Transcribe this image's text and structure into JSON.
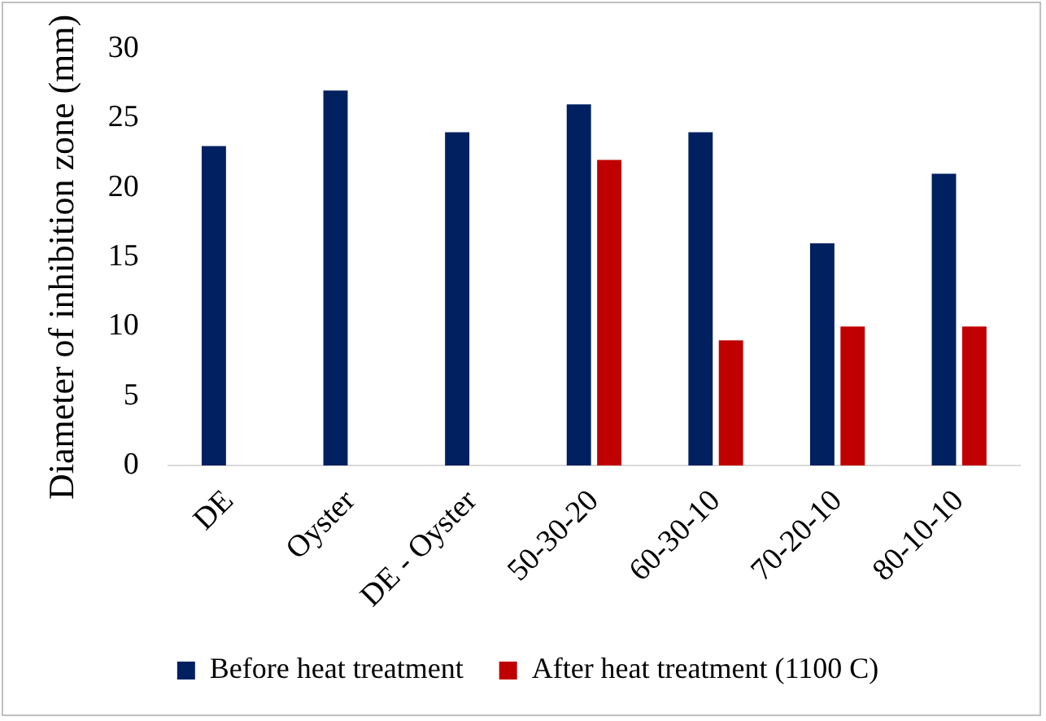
{
  "chart_data": {
    "type": "bar",
    "ylabel": "Diameter of inhibition zone (mm)",
    "categories": [
      "DE",
      "Oyster",
      "DE - Oyster",
      "50-30-20",
      "60-30-10",
      "70-20-10",
      "80-10-10"
    ],
    "series": [
      {
        "name": "Before heat treatment",
        "color": "#002060",
        "values": [
          23,
          27,
          24,
          26,
          24,
          16,
          21
        ]
      },
      {
        "name": "After heat treatment (1100 C)",
        "color": "#c00000",
        "values": [
          null,
          null,
          null,
          22,
          9,
          10,
          10
        ]
      }
    ],
    "ylim": [
      0,
      30
    ],
    "yticks": [
      0,
      5,
      10,
      15,
      20,
      25,
      30
    ],
    "grid": false,
    "legend": "bottom"
  }
}
